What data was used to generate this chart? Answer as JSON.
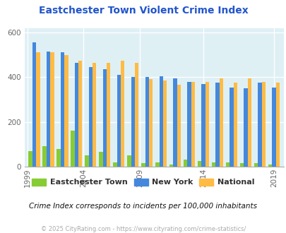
{
  "title": "Eastchester Town Violent Crime Index",
  "subtitle": "Crime Index corresponds to incidents per 100,000 inhabitants",
  "footer": "© 2025 CityRating.com - https://www.cityrating.com/crime-statistics/",
  "years": [
    2000,
    2001,
    2002,
    2003,
    2005,
    2006,
    2007,
    2008,
    2010,
    2011,
    2012,
    2013,
    2014,
    2015,
    2016,
    2017,
    2018,
    2019
  ],
  "eastchester": [
    70,
    90,
    80,
    160,
    50,
    65,
    20,
    50,
    15,
    20,
    10,
    30,
    25,
    20,
    20,
    15,
    15,
    10
  ],
  "new_york": [
    555,
    515,
    510,
    465,
    445,
    435,
    410,
    400,
    400,
    405,
    395,
    380,
    370,
    375,
    355,
    350,
    375,
    355
  ],
  "national": [
    510,
    510,
    500,
    475,
    465,
    465,
    475,
    465,
    390,
    385,
    365,
    380,
    380,
    395,
    375,
    395,
    380,
    375
  ],
  "tick_years": [
    1999,
    2004,
    2009,
    2014,
    2019
  ],
  "tick_labels": [
    "1999",
    "2004",
    "2009",
    "2014",
    "2019"
  ],
  "bar_width": 0.27,
  "ylim": [
    0,
    620
  ],
  "yticks": [
    0,
    200,
    400,
    600
  ],
  "color_eastchester": "#88cc33",
  "color_newyork": "#4488dd",
  "color_national": "#ffbb44",
  "bg_color": "#dff0f5",
  "title_color": "#2255cc",
  "subtitle_color": "#111111",
  "footer_color": "#aaaaaa",
  "legend_label_eastchester": "Eastchester Town",
  "legend_label_newyork": "New York",
  "legend_label_national": "National"
}
